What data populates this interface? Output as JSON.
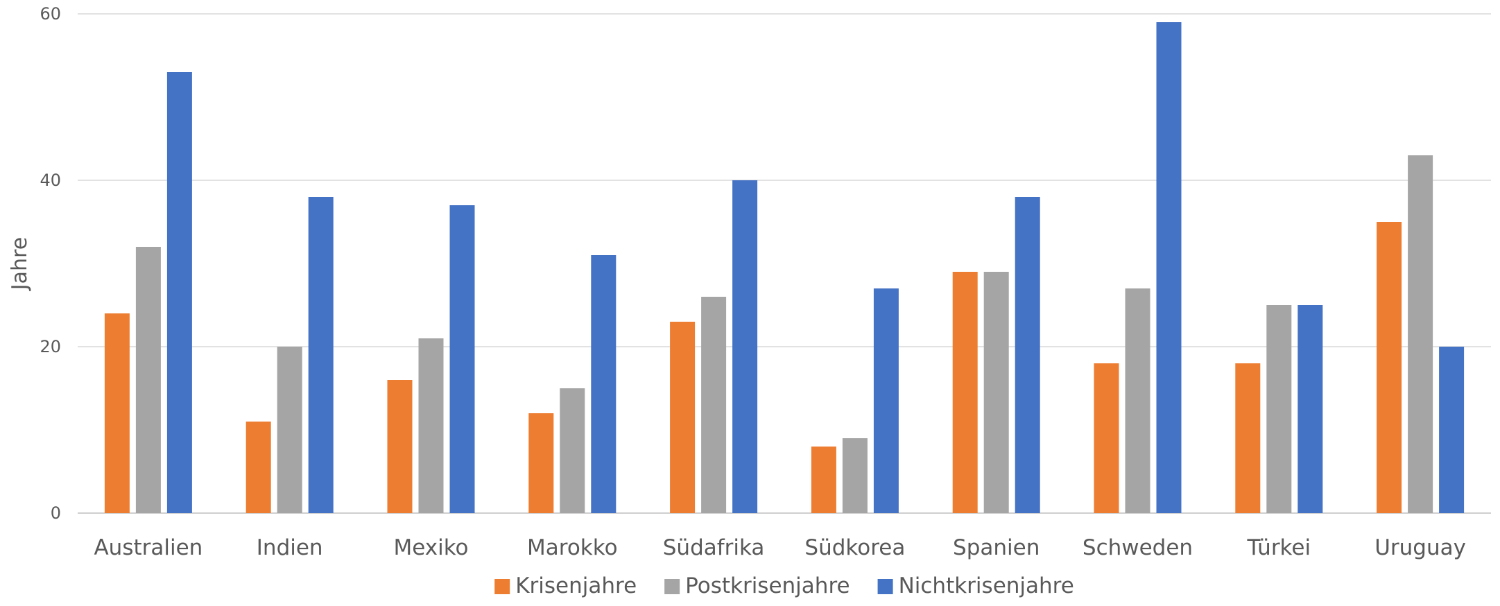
{
  "chart_data": {
    "type": "bar",
    "title": "",
    "xlabel": "",
    "ylabel": "Jahre",
    "ylim": [
      0,
      60
    ],
    "yticks": [
      0,
      20,
      40,
      60
    ],
    "grid": true,
    "legend_position": "bottom",
    "categories": [
      "Australien",
      "Indien",
      "Mexiko",
      "Marokko",
      "Südafrika",
      "Südkorea",
      "Spanien",
      "Schweden",
      "Türkei",
      "Uruguay"
    ],
    "series": [
      {
        "name": "Krisenjahre",
        "color": "#ED7D31",
        "values": [
          24,
          11,
          16,
          12,
          23,
          8,
          29,
          18,
          18,
          35
        ]
      },
      {
        "name": "Postkrisenjahre",
        "color": "#A5A5A5",
        "values": [
          32,
          20,
          21,
          15,
          26,
          9,
          29,
          27,
          25,
          43
        ]
      },
      {
        "name": "Nichtkrisenjahre",
        "color": "#4472C4",
        "values": [
          53,
          38,
          37,
          31,
          40,
          27,
          38,
          59,
          25,
          20
        ]
      }
    ]
  }
}
